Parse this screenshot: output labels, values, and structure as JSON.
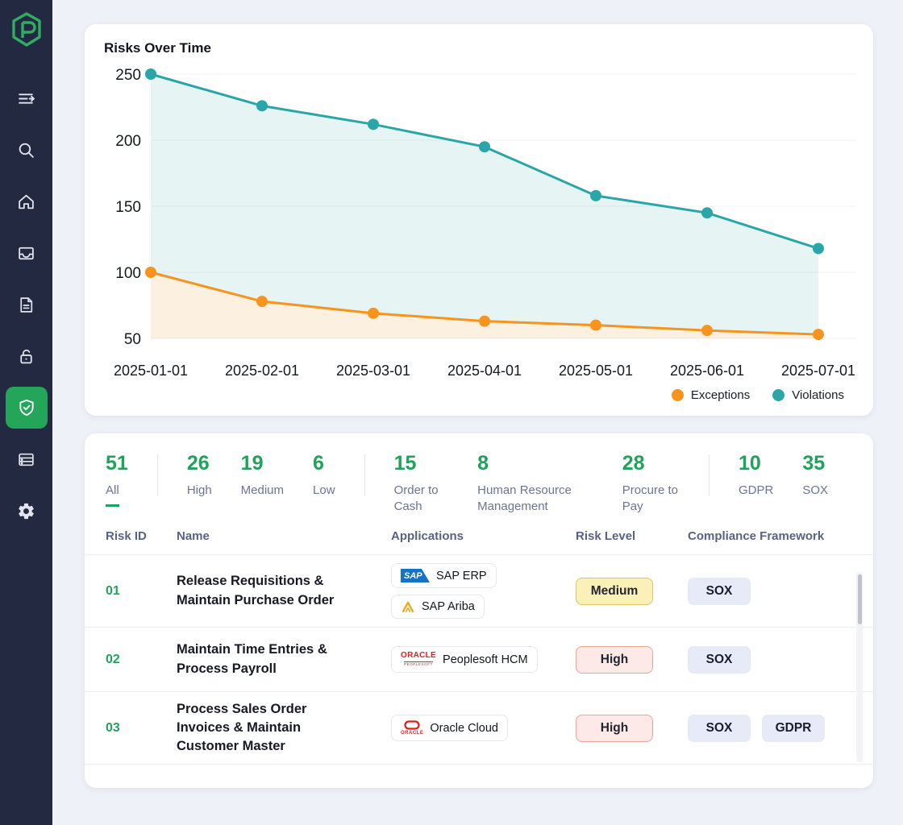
{
  "sidebar": {
    "items": [
      {
        "icon": "collapse-menu-icon",
        "active": false
      },
      {
        "icon": "search-icon",
        "active": false
      },
      {
        "icon": "home-icon",
        "active": false
      },
      {
        "icon": "inbox-icon",
        "active": false
      },
      {
        "icon": "document-icon",
        "active": false
      },
      {
        "icon": "unlock-icon",
        "active": false
      },
      {
        "icon": "shield-check-icon",
        "active": true
      },
      {
        "icon": "list-icon",
        "active": false
      },
      {
        "icon": "settings-icon",
        "active": false
      }
    ]
  },
  "chart": {
    "title": "Risks Over Time"
  },
  "chart_data": {
    "type": "line",
    "x": [
      "2025-01-01",
      "2025-02-01",
      "2025-03-01",
      "2025-04-01",
      "2025-05-01",
      "2025-06-01",
      "2025-07-01"
    ],
    "series": [
      {
        "name": "Exceptions",
        "color": "#F7941E",
        "fill": "#FCF1E0",
        "values": [
          100,
          78,
          69,
          63,
          60,
          56,
          53
        ]
      },
      {
        "name": "Violations",
        "color": "#2AA6A9",
        "fill": "#E7F4F4",
        "values": [
          250,
          226,
          212,
          195,
          158,
          145,
          118
        ]
      }
    ],
    "ylim": [
      50,
      250
    ],
    "yticks": [
      50,
      100,
      150,
      200,
      250
    ],
    "grid": true,
    "legend_position": "bottom-right"
  },
  "filters": [
    {
      "count": "51",
      "label": "All",
      "active": true,
      "divider_after": true
    },
    {
      "count": "26",
      "label": "High",
      "active": false,
      "divider_after": false
    },
    {
      "count": "19",
      "label": "Medium",
      "active": false,
      "divider_after": false
    },
    {
      "count": "6",
      "label": "Low",
      "active": false,
      "divider_after": true
    },
    {
      "count": "15",
      "label": "Order to Cash",
      "active": false,
      "divider_after": false
    },
    {
      "count": "8",
      "label": "Human Resource Management",
      "active": false,
      "divider_after": false,
      "wide": true
    },
    {
      "count": "28",
      "label": "Procure to Pay",
      "active": false,
      "divider_after": true
    },
    {
      "count": "10",
      "label": "GDPR",
      "active": false,
      "divider_after": false
    },
    {
      "count": "35",
      "label": "SOX",
      "active": false,
      "divider_after": false
    }
  ],
  "table": {
    "columns": [
      "Risk ID",
      "Name",
      "Applications",
      "Risk Level",
      "Compliance Framework"
    ],
    "rows": [
      {
        "id": "01",
        "name": "Release Requisitions & Maintain Purchase Order",
        "apps": [
          {
            "name": "SAP ERP",
            "logo": "sap-logo"
          },
          {
            "name": "SAP Ariba",
            "logo": "sap-ariba-logo"
          }
        ],
        "risk": "Medium",
        "frameworks": [
          "SOX"
        ]
      },
      {
        "id": "02",
        "name": "Maintain Time Entries & Process Payroll",
        "apps": [
          {
            "name": "Peoplesoft HCM",
            "logo": "oracle-peoplesoft-logo"
          }
        ],
        "risk": "High",
        "frameworks": [
          "SOX"
        ]
      },
      {
        "id": "03",
        "name": "Process Sales Order Invoices & Maintain Customer Master",
        "apps": [
          {
            "name": "Oracle Cloud",
            "logo": "oracle-cloud-logo"
          }
        ],
        "risk": "High",
        "frameworks": [
          "SOX",
          "GDPR"
        ]
      }
    ]
  }
}
